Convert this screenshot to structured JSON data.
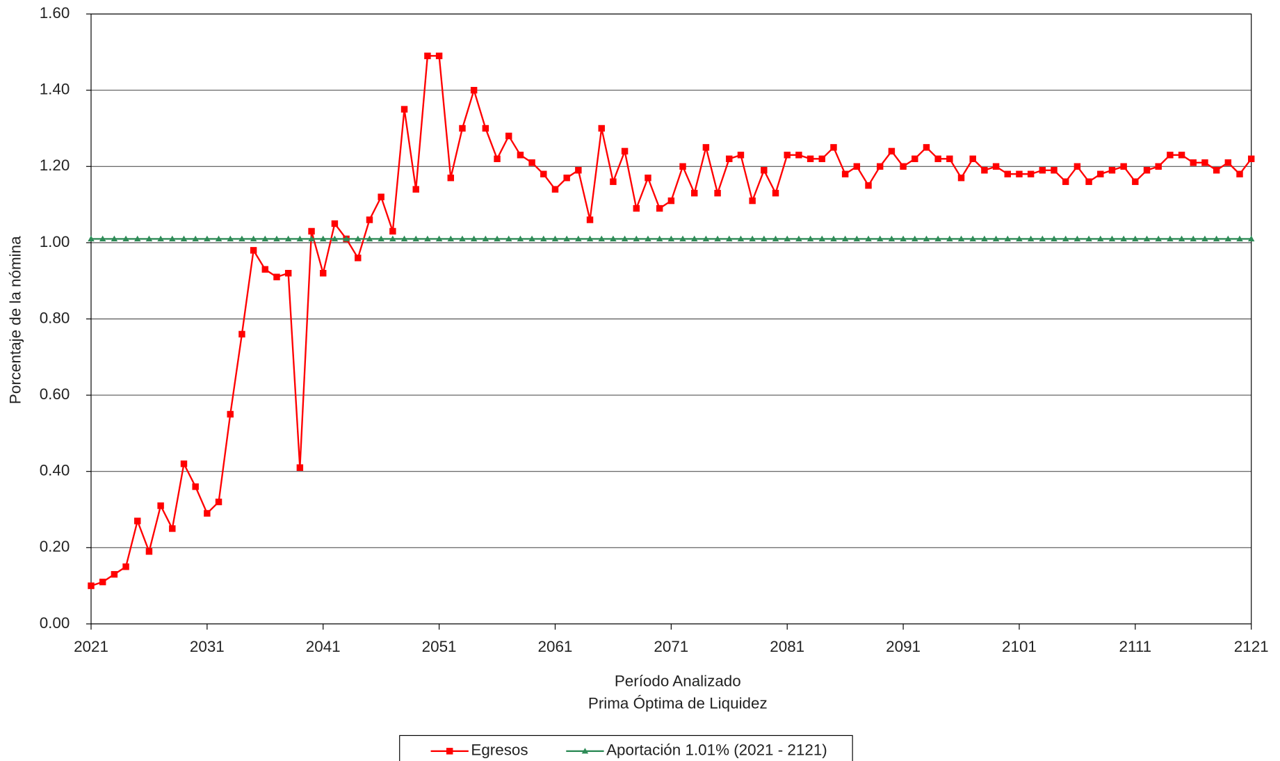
{
  "chart_data": {
    "type": "line",
    "x_title": "Período Analizado",
    "subtitle": "Prima Óptima de Liquidez",
    "y_title": "Porcentaje de la nómina",
    "x": [
      2021,
      2022,
      2023,
      2024,
      2025,
      2026,
      2027,
      2028,
      2029,
      2030,
      2031,
      2032,
      2033,
      2034,
      2035,
      2036,
      2037,
      2038,
      2039,
      2040,
      2041,
      2042,
      2043,
      2044,
      2045,
      2046,
      2047,
      2048,
      2049,
      2050,
      2051,
      2052,
      2053,
      2054,
      2055,
      2056,
      2057,
      2058,
      2059,
      2060,
      2061,
      2062,
      2063,
      2064,
      2065,
      2066,
      2067,
      2068,
      2069,
      2070,
      2071,
      2072,
      2073,
      2074,
      2075,
      2076,
      2077,
      2078,
      2079,
      2080,
      2081,
      2082,
      2083,
      2084,
      2085,
      2086,
      2087,
      2088,
      2089,
      2090,
      2091,
      2092,
      2093,
      2094,
      2095,
      2096,
      2097,
      2098,
      2099,
      2100,
      2101,
      2102,
      2103,
      2104,
      2105,
      2106,
      2107,
      2108,
      2109,
      2110,
      2111,
      2112,
      2113,
      2114,
      2115,
      2116,
      2117,
      2118,
      2119,
      2120,
      2121
    ],
    "series": [
      {
        "name": "Egresos",
        "color": "#ff0000",
        "marker": "square",
        "values": [
          0.1,
          0.11,
          0.13,
          0.15,
          0.27,
          0.19,
          0.31,
          0.25,
          0.42,
          0.36,
          0.29,
          0.32,
          0.55,
          0.76,
          0.98,
          0.93,
          0.91,
          0.92,
          0.41,
          1.03,
          0.92,
          1.05,
          1.01,
          0.96,
          1.06,
          1.12,
          1.03,
          1.35,
          1.14,
          1.49,
          1.49,
          1.17,
          1.3,
          1.4,
          1.3,
          1.22,
          1.28,
          1.23,
          1.21,
          1.18,
          1.14,
          1.17,
          1.19,
          1.06,
          1.3,
          1.16,
          1.24,
          1.09,
          1.17,
          1.09,
          1.11,
          1.2,
          1.13,
          1.25,
          1.13,
          1.22,
          1.23,
          1.11,
          1.19,
          1.13,
          1.23,
          1.23,
          1.22,
          1.22,
          1.25,
          1.18,
          1.2,
          1.15,
          1.2,
          1.24,
          1.2,
          1.22,
          1.25,
          1.22,
          1.22,
          1.17,
          1.22,
          1.19,
          1.2,
          1.18,
          1.18,
          1.18,
          1.19,
          1.19,
          1.16,
          1.2,
          1.16,
          1.18,
          1.19,
          1.2,
          1.16,
          1.19,
          1.2,
          1.23,
          1.23,
          1.21,
          1.21,
          1.19,
          1.21,
          1.18,
          1.22
        ]
      },
      {
        "name": "Aportación 1.01% (2021 - 2121)",
        "color": "#2e8b57",
        "marker": "triangle",
        "values": [
          1.01,
          1.01,
          1.01,
          1.01,
          1.01,
          1.01,
          1.01,
          1.01,
          1.01,
          1.01,
          1.01,
          1.01,
          1.01,
          1.01,
          1.01,
          1.01,
          1.01,
          1.01,
          1.01,
          1.01,
          1.01,
          1.01,
          1.01,
          1.01,
          1.01,
          1.01,
          1.01,
          1.01,
          1.01,
          1.01,
          1.01,
          1.01,
          1.01,
          1.01,
          1.01,
          1.01,
          1.01,
          1.01,
          1.01,
          1.01,
          1.01,
          1.01,
          1.01,
          1.01,
          1.01,
          1.01,
          1.01,
          1.01,
          1.01,
          1.01,
          1.01,
          1.01,
          1.01,
          1.01,
          1.01,
          1.01,
          1.01,
          1.01,
          1.01,
          1.01,
          1.01,
          1.01,
          1.01,
          1.01,
          1.01,
          1.01,
          1.01,
          1.01,
          1.01,
          1.01,
          1.01,
          1.01,
          1.01,
          1.01,
          1.01,
          1.01,
          1.01,
          1.01,
          1.01,
          1.01,
          1.01,
          1.01,
          1.01,
          1.01,
          1.01,
          1.01,
          1.01,
          1.01,
          1.01,
          1.01,
          1.01,
          1.01,
          1.01,
          1.01,
          1.01,
          1.01,
          1.01,
          1.01,
          1.01,
          1.01,
          1.01
        ]
      }
    ],
    "xlim": [
      2021,
      2121
    ],
    "xticks": [
      2021,
      2031,
      2041,
      2051,
      2061,
      2071,
      2081,
      2091,
      2101,
      2111,
      2121
    ],
    "ylim": [
      0,
      1.6
    ],
    "yticks": [
      {
        "value": 0,
        "label": "0.00"
      },
      {
        "value": 0.2,
        "label": "0.20"
      },
      {
        "value": 0.4,
        "label": "0.40"
      },
      {
        "value": 0.6,
        "label": "0.60"
      },
      {
        "value": 0.8,
        "label": "0.80"
      },
      {
        "value": 1,
        "label": "1.00"
      },
      {
        "value": 1.2,
        "label": "1.20"
      },
      {
        "value": 1.4,
        "label": "1.40"
      },
      {
        "value": 1.6,
        "label": "1.60"
      }
    ],
    "grid": true,
    "legend": "bottom"
  }
}
